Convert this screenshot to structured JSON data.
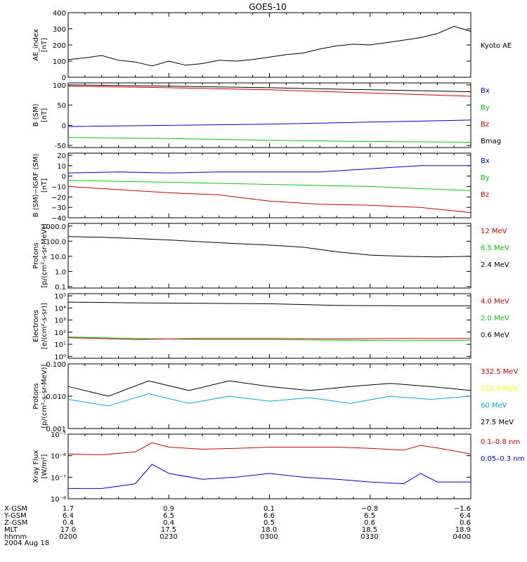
{
  "title": "GOES-10",
  "panels": [
    {
      "ylabel": [
        "AE_index",
        "[nT]"
      ],
      "ticks": [
        {
          "v": 400,
          "label": "400"
        },
        {
          "v": 300,
          "label": "300"
        },
        {
          "v": 200,
          "label": "200"
        },
        {
          "v": 100,
          "label": "100"
        },
        {
          "v": 0,
          "label": "0"
        }
      ],
      "legend": [
        {
          "text": "Kyoto AE",
          "color": "#000000"
        }
      ]
    },
    {
      "ylabel": [
        "B (SM)",
        "[nT]"
      ],
      "ticks": [
        {
          "v": 100,
          "label": "100"
        },
        {
          "v": 50,
          "label": "50"
        },
        {
          "v": 0,
          "label": "0"
        },
        {
          "v": -50,
          "label": "-50"
        }
      ],
      "legend": [
        {
          "text": "Bx",
          "color": "#0000cc"
        },
        {
          "text": "By",
          "color": "#00cc00"
        },
        {
          "text": "Bz",
          "color": "#cc0000"
        },
        {
          "text": "Bmag",
          "color": "#000000"
        }
      ]
    },
    {
      "ylabel": [
        "B (SM)−IGRF (SM)",
        "[nT]"
      ],
      "ticks": [
        {
          "v": 20,
          "label": "20"
        },
        {
          "v": 10,
          "label": "10"
        },
        {
          "v": 0,
          "label": "0"
        },
        {
          "v": -10,
          "label": "−10"
        },
        {
          "v": -20,
          "label": "−20"
        },
        {
          "v": -30,
          "label": "−30"
        },
        {
          "v": -40,
          "label": "−40"
        }
      ],
      "legend": [
        {
          "text": "Bx",
          "color": "#0000cc"
        },
        {
          "text": "By",
          "color": "#00cc00"
        },
        {
          "text": "Bz",
          "color": "#cc0000"
        }
      ]
    },
    {
      "ylabel": [
        "Protons",
        "[p/(cm²-s-sr-MeV)]"
      ],
      "ticks": [
        {
          "v": 1000,
          "label": "1000.0"
        },
        {
          "v": 100,
          "label": "100.0"
        },
        {
          "v": 10,
          "label": "10.0"
        },
        {
          "v": 1,
          "label": "1.0"
        },
        {
          "v": 0.1,
          "label": "0.1"
        }
      ],
      "legend": [
        {
          "text": "12 MeV",
          "color": "#cc0000"
        },
        {
          "text": "6.5 MeV",
          "color": "#00cc00"
        },
        {
          "text": "2.4 MeV",
          "color": "#000000"
        }
      ]
    },
    {
      "ylabel": [
        "Electrons",
        "[e/(cm²-s-sr)]"
      ],
      "ticks": [
        {
          "v": 100000,
          "label": "10⁵"
        },
        {
          "v": 10000,
          "label": "10⁴"
        },
        {
          "v": 1000,
          "label": "10³"
        },
        {
          "v": 100,
          "label": "10²"
        },
        {
          "v": 10,
          "label": "10¹"
        },
        {
          "v": 1,
          "label": "10⁰"
        }
      ],
      "legend": [
        {
          "text": "4.0 MeV",
          "color": "#cc0000"
        },
        {
          "text": "2.0 MeV",
          "color": "#00cc00"
        },
        {
          "text": "0.6 MeV",
          "color": "#000000"
        }
      ]
    },
    {
      "ylabel": [
        "Protons",
        "[p/(cm²-s-sr-MeV)]"
      ],
      "ticks": [
        {
          "v": 0.1,
          "label": "0.100"
        },
        {
          "v": 0.01,
          "label": "0.010"
        },
        {
          "v": 0.001,
          "label": "0.001"
        }
      ],
      "legend": [
        {
          "text": "332.5 MeV",
          "color": "#cc0000"
        },
        {
          "text": "122.5 MeV",
          "color": "#ffff00"
        },
        {
          "text": "60 MeV",
          "color": "#00aadd"
        },
        {
          "text": "27.5 MeV",
          "color": "#000000"
        }
      ]
    },
    {
      "ylabel": [
        "Xray Flux",
        "[W/m²]"
      ],
      "ticks": [
        {
          "v": 1e-05,
          "label": "10⁻⁵"
        },
        {
          "v": 1e-06,
          "label": "10⁻⁶"
        },
        {
          "v": 1e-07,
          "label": "10⁻⁷"
        },
        {
          "v": 1e-08,
          "label": "10⁻⁸"
        }
      ],
      "legend": [
        {
          "text": "0.1–0.8 nm",
          "color": "#cc0000"
        },
        {
          "text": "0.05–0.3 nm",
          "color": "#0000cc"
        }
      ]
    }
  ],
  "footer": {
    "rows": [
      {
        "label": "X-GSM",
        "values": [
          "1.7",
          "0.9",
          "0.1",
          "−0.8",
          "−1.6"
        ]
      },
      {
        "label": "Y-GSM",
        "values": [
          "6.4",
          "6.5",
          "6.6",
          "6.5",
          "6.4"
        ]
      },
      {
        "label": "Z-GSM",
        "values": [
          "0.4",
          "0.4",
          "0.5",
          "0.6",
          "0.6"
        ]
      },
      {
        "label": "MLT",
        "values": [
          "17.0",
          "17.5",
          "18.0",
          "18.5",
          "18.9"
        ]
      },
      {
        "label": "hhmm",
        "values": [
          "0200",
          "0230",
          "0300",
          "0330",
          "0400"
        ]
      }
    ],
    "date": "2004 Aug 18"
  },
  "chart_data": [
    {
      "type": "line",
      "scale": "linear",
      "ylim": [
        0,
        400
      ],
      "x": [
        0,
        5,
        10,
        15,
        20,
        25,
        30,
        35,
        40,
        45,
        50,
        55,
        60,
        65,
        70,
        75,
        80,
        85,
        90,
        95,
        100,
        105,
        110,
        115,
        120
      ],
      "series": [
        {
          "name": "Kyoto AE",
          "color": "#000000",
          "values": [
            110,
            120,
            135,
            105,
            95,
            70,
            100,
            75,
            85,
            105,
            100,
            110,
            125,
            140,
            150,
            175,
            195,
            205,
            200,
            215,
            230,
            245,
            270,
            315,
            285
          ]
        }
      ]
    },
    {
      "type": "line",
      "scale": "linear",
      "ylim": [
        -55,
        105
      ],
      "x": [
        0,
        30,
        60,
        90,
        120
      ],
      "series": [
        {
          "name": "Bx",
          "color": "#0000cc",
          "values": [
            -3,
            0,
            3,
            8,
            13
          ]
        },
        {
          "name": "By",
          "color": "#00cc00",
          "values": [
            -30,
            -33,
            -37,
            -40,
            -42
          ]
        },
        {
          "name": "Bz",
          "color": "#cc0000",
          "values": [
            97,
            93,
            88,
            80,
            72
          ]
        },
        {
          "name": "Bmag",
          "color": "#000000",
          "values": [
            100,
            97,
            93,
            88,
            83
          ]
        }
      ]
    },
    {
      "type": "line",
      "scale": "linear",
      "ylim": [
        -40,
        22
      ],
      "x": [
        0,
        15,
        30,
        45,
        60,
        75,
        90,
        105,
        120
      ],
      "series": [
        {
          "name": "Bx",
          "color": "#0000cc",
          "values": [
            3,
            4,
            3,
            4,
            4,
            4,
            7,
            10,
            10
          ]
        },
        {
          "name": "By",
          "color": "#00cc00",
          "values": [
            -4,
            -5,
            -6,
            -7,
            -8,
            -9,
            -10,
            -12,
            -14
          ]
        },
        {
          "name": "Bz",
          "color": "#cc0000",
          "values": [
            -10,
            -13,
            -16,
            -18,
            -24,
            -27,
            -28,
            -30,
            -35
          ]
        }
      ]
    },
    {
      "type": "line",
      "scale": "log",
      "ylim": [
        0.08,
        1500
      ],
      "x": [
        0,
        10,
        20,
        30,
        40,
        50,
        60,
        70,
        80,
        90,
        100,
        110,
        120
      ],
      "series": [
        {
          "name": "2.4 MeV",
          "color": "#000000",
          "values": [
            200,
            180,
            150,
            120,
            90,
            70,
            55,
            40,
            20,
            12,
            10,
            9,
            10
          ]
        }
      ]
    },
    {
      "type": "line",
      "scale": "log",
      "ylim": [
        0.7,
        150000
      ],
      "x": [
        0,
        20,
        40,
        60,
        80,
        100,
        120
      ],
      "series": [
        {
          "name": "0.6 MeV",
          "color": "#000000",
          "values": [
            30000,
            26000,
            24000,
            22000,
            16000,
            15000,
            15000
          ]
        },
        {
          "name": "2.0 MeV",
          "color": "#00cc00",
          "values": [
            40,
            30,
            25,
            25,
            22,
            20,
            22
          ]
        },
        {
          "name": "4.0 MeV",
          "color": "#cc0000",
          "values": [
            35,
            25,
            30,
            30,
            28,
            30,
            30
          ]
        }
      ]
    },
    {
      "type": "line",
      "scale": "log",
      "ylim": [
        0.001,
        0.1
      ],
      "x": [
        0,
        12,
        24,
        36,
        48,
        60,
        72,
        84,
        96,
        108,
        120
      ],
      "series": [
        {
          "name": "27.5 MeV",
          "color": "#000000",
          "values": [
            0.02,
            0.01,
            0.03,
            0.015,
            0.03,
            0.02,
            0.015,
            0.02,
            0.025,
            0.02,
            0.015
          ]
        },
        {
          "name": "60 MeV",
          "color": "#00aadd",
          "values": [
            0.008,
            0.005,
            0.012,
            0.006,
            0.01,
            0.007,
            0.009,
            0.006,
            0.01,
            0.008,
            0.01
          ]
        }
      ]
    },
    {
      "type": "line",
      "scale": "log",
      "ylim": [
        1e-08,
        1e-05
      ],
      "x": [
        0,
        10,
        20,
        25,
        30,
        40,
        50,
        60,
        70,
        80,
        90,
        100,
        105,
        110,
        120
      ],
      "series": [
        {
          "name": "0.1–0.8 nm",
          "color": "#cc0000",
          "values": [
            1.2e-06,
            1.1e-06,
            1.5e-06,
            4e-06,
            2.5e-06,
            2e-06,
            2.2e-06,
            2.5e-06,
            2.5e-06,
            2.5e-06,
            2.2e-06,
            1.8e-06,
            3e-06,
            2.3e-06,
            1.2e-06
          ]
        },
        {
          "name": "0.05–0.3 nm",
          "color": "#0000cc",
          "values": [
            3e-08,
            3e-08,
            5e-08,
            4e-07,
            1.5e-07,
            8e-08,
            1e-07,
            1.5e-07,
            1e-07,
            8e-08,
            6e-08,
            5e-08,
            1.5e-07,
            6e-08,
            6e-08
          ]
        }
      ]
    }
  ]
}
